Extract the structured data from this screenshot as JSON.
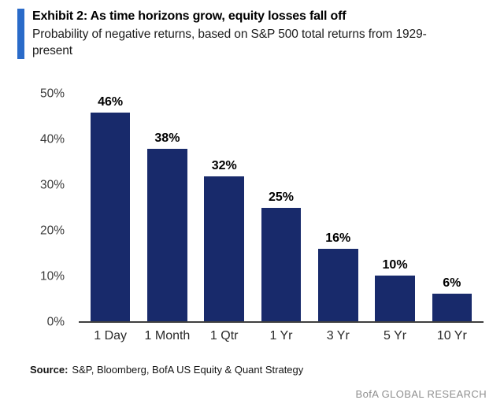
{
  "header": {
    "title": "Exhibit 2: As time horizons grow, equity losses fall off",
    "subtitle": "Probability of negative returns, based on S&P 500 total returns from 1929-present"
  },
  "chart_data": {
    "type": "bar",
    "title": "Exhibit 2: As time horizons grow, equity losses fall off",
    "subtitle": "Probability of negative returns, based on S&P 500 total returns from 1929-present",
    "categories": [
      "1 Day",
      "1 Month",
      "1 Qtr",
      "1 Yr",
      "3 Yr",
      "5 Yr",
      "10 Yr"
    ],
    "values": [
      46,
      38,
      32,
      25,
      16,
      10,
      6
    ],
    "value_labels": [
      "46%",
      "38%",
      "32%",
      "25%",
      "16%",
      "10%",
      "6%"
    ],
    "y_tick_values": [
      50,
      40,
      30,
      20,
      10,
      0
    ],
    "y_tick_labels": [
      "50%",
      "40%",
      "30%",
      "20%",
      "10%",
      "0%"
    ],
    "ylim": [
      0,
      50
    ],
    "grid": false,
    "legend": "none",
    "bar_color": "#182a6b",
    "axis_line_color": "#3f3f3f"
  },
  "footer": {
    "source_label": "Source:",
    "source_text": "S&P, Bloomberg, BofA US Equity & Quant Strategy",
    "watermark": "BofA GLOBAL RESEARCH"
  },
  "colors": {
    "accent_blue": "#2a6bc9",
    "bar_navy": "#182a6b",
    "watermark_gray": "#8f8f8f"
  }
}
